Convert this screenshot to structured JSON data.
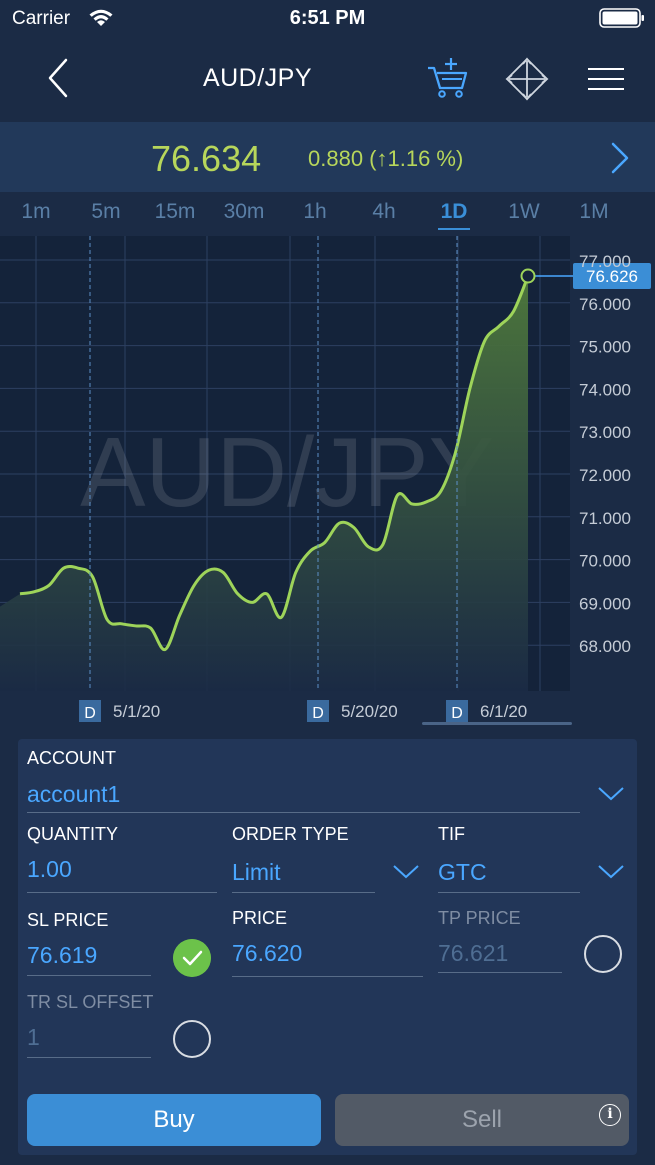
{
  "status_bar": {
    "carrier": "Carrier",
    "time": "6:51 PM"
  },
  "nav": {
    "title": "AUD/JPY",
    "icons": [
      "back-icon",
      "cart-add-icon",
      "crosshair-icon",
      "menu-icon"
    ]
  },
  "price_bar": {
    "price": "76.634",
    "change": "0.880 (↑1.16 %)"
  },
  "timeframes": [
    "1m",
    "5m",
    "15m",
    "30m",
    "1h",
    "4h",
    "1D",
    "1W",
    "1M"
  ],
  "active_timeframe": "1D",
  "chart_data": {
    "type": "area",
    "watermark": "AUD/JPY",
    "y_ticks": [
      "77.000",
      "76.000",
      "75.000",
      "74.000",
      "73.000",
      "72.000",
      "71.000",
      "70.000",
      "69.000",
      "68.000"
    ],
    "ylim": [
      67.0,
      77.0
    ],
    "x_labels": [
      {
        "badge": "D",
        "label": "5/1/20"
      },
      {
        "badge": "D",
        "label": "5/20/20"
      },
      {
        "badge": "D",
        "label": "6/1/20"
      }
    ],
    "current_value": "76.626",
    "series": [
      {
        "values": [
          69.2,
          69.25,
          69.4,
          69.8,
          69.8,
          69.6,
          68.6,
          68.5,
          68.45,
          68.4,
          67.9,
          68.7,
          69.4,
          69.75,
          69.7,
          69.2,
          69.0,
          69.2,
          68.65,
          69.7,
          70.2,
          70.4,
          70.85,
          70.75,
          70.3,
          70.35,
          71.5,
          71.3,
          71.35,
          71.6,
          72.5,
          74.0,
          75.1,
          75.45,
          75.8,
          76.626
        ]
      }
    ],
    "colors": {
      "line": "#9ed45a",
      "fill_top": "#4f7a3c",
      "fill_bottom": "#1b2b45"
    }
  },
  "order": {
    "account_label": "ACCOUNT",
    "account_value": "account1",
    "quantity_label": "QUANTITY",
    "quantity_value": "1.00",
    "order_type_label": "ORDER TYPE",
    "order_type_value": "Limit",
    "tif_label": "TIF",
    "tif_value": "GTC",
    "sl_price_label": "SL PRICE",
    "sl_price_value": "76.619",
    "price_label": "PRICE",
    "price_value": "76.620",
    "tp_price_label": "TP PRICE",
    "tp_price_value": "76.621",
    "tr_sl_offset_label": "TR SL OFFSET",
    "tr_sl_offset_value": "1",
    "buy_label": "Buy",
    "sell_label": "Sell",
    "info_glyph": "i"
  },
  "colors": {
    "accent": "#3b8ed6",
    "price_green": "#b7d65b",
    "background": "#1b2b45"
  }
}
